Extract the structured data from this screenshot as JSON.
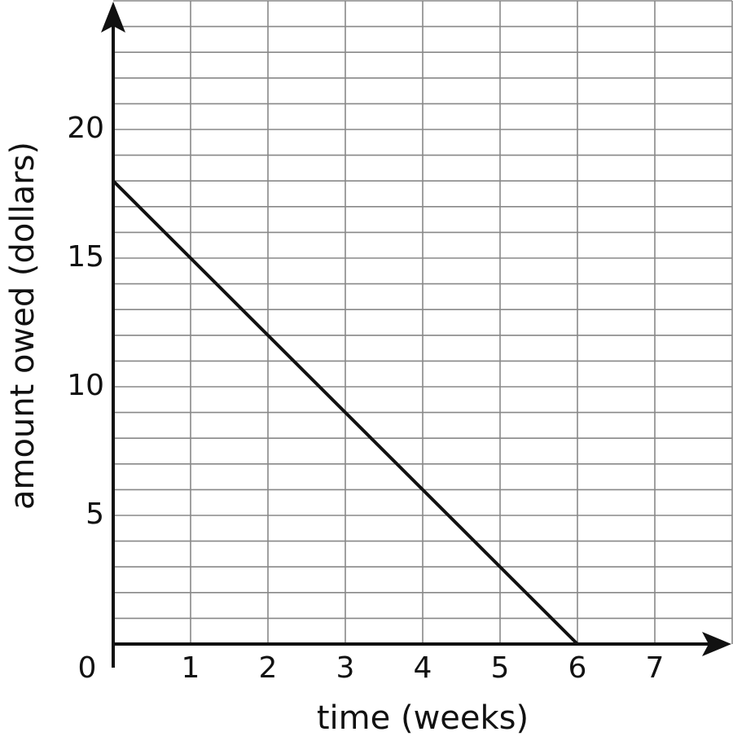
{
  "chart_data": {
    "type": "line",
    "x_label": "time (weeks)",
    "y_label": "amount owed (dollars)",
    "x": [
      0,
      6
    ],
    "series": [
      {
        "color": "#111111",
        "values": [
          18,
          0
        ]
      }
    ],
    "xlim": [
      0,
      8
    ],
    "ylim": [
      0,
      25
    ],
    "xticks": [
      0,
      1,
      2,
      3,
      4,
      5,
      6,
      7
    ],
    "yticks": [
      5,
      10,
      15,
      20
    ],
    "xgrid": [
      1,
      2,
      3,
      4,
      5,
      6,
      7,
      8
    ],
    "ygrid": [
      1,
      2,
      3,
      4,
      5,
      6,
      7,
      8,
      9,
      10,
      11,
      12,
      13,
      14,
      15,
      16,
      17,
      18,
      19,
      20,
      21,
      22,
      23,
      24,
      25
    ],
    "grid": true
  }
}
